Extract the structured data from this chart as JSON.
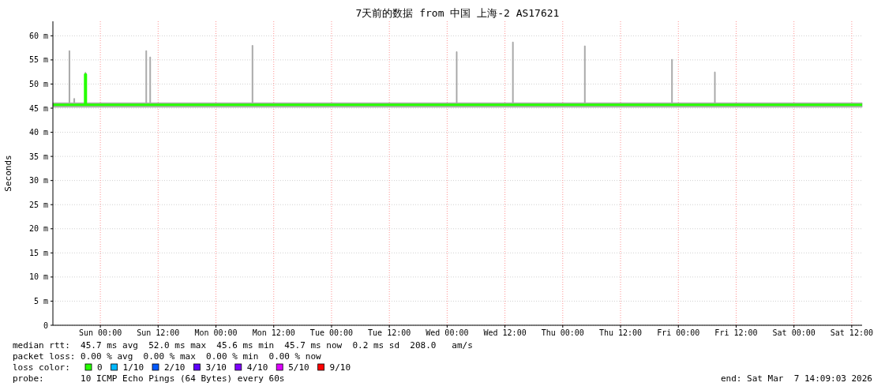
{
  "chart_data": {
    "type": "line",
    "title": "7天前的数据 from 中国 上海-2 AS17621",
    "ylabel": "Seconds",
    "x": [
      "2026-02-28T14:09",
      "2026-02-28T17:20",
      "2026-02-28T17:30",
      "2026-02-28T17:40",
      "2026-02-28T18:20",
      "2026-02-28T18:30",
      "2026-02-28T18:40",
      "2026-02-28T20:40",
      "2026-02-28T20:50",
      "2026-02-28T21:00",
      "2026-03-01T09:17",
      "2026-03-01T09:27",
      "2026-03-01T09:37",
      "2026-03-01T10:06",
      "2026-03-01T10:16",
      "2026-03-01T10:26",
      "2026-03-02T07:20",
      "2026-03-02T07:30",
      "2026-03-02T07:40",
      "2026-03-04T01:44",
      "2026-03-04T01:54",
      "2026-03-04T02:04",
      "2026-03-04T13:24",
      "2026-03-04T13:34",
      "2026-03-04T13:44",
      "2026-03-05T04:20",
      "2026-03-05T04:30",
      "2026-03-05T04:40",
      "2026-03-05T22:26",
      "2026-03-05T22:36",
      "2026-03-05T22:46",
      "2026-03-06T07:20",
      "2026-03-06T07:30",
      "2026-03-06T07:40",
      "2026-03-07T14:09"
    ],
    "series": [
      {
        "name": "0",
        "color": "#26ff00",
        "values": [
          45.7,
          45.7,
          45.7,
          45.7,
          45.7,
          45.7,
          45.7,
          45.7,
          52.0,
          45.7,
          45.7,
          45.7,
          45.7,
          45.7,
          45.7,
          45.7,
          45.7,
          45.7,
          45.7,
          45.7,
          45.7,
          45.7,
          45.7,
          45.7,
          45.7,
          45.7,
          45.7,
          45.7,
          45.7,
          45.7,
          45.7,
          45.7,
          45.7,
          45.7,
          45.7
        ],
        "lower": [
          45.2,
          45.2,
          45.2,
          45.2,
          45.2,
          45.2,
          45.2,
          45.2,
          45.2,
          45.2,
          45.2,
          45.2,
          45.2,
          45.2,
          45.2,
          45.2,
          45.2,
          45.2,
          45.2,
          45.2,
          45.2,
          45.2,
          45.2,
          45.2,
          45.2,
          45.2,
          45.2,
          45.2,
          45.2,
          45.2,
          45.2,
          45.2,
          45.2,
          45.2,
          45.2
        ],
        "upper": [
          46.1,
          46.1,
          56.9,
          46.1,
          46.1,
          47.0,
          46.1,
          46.1,
          52.4,
          46.1,
          46.1,
          56.9,
          46.1,
          46.1,
          55.6,
          46.1,
          46.1,
          58.0,
          46.1,
          46.1,
          56.7,
          46.1,
          46.1,
          58.7,
          46.1,
          46.1,
          57.9,
          46.1,
          46.1,
          55.1,
          46.1,
          46.1,
          52.5,
          46.1,
          46.1
        ]
      },
      {
        "name": "1/10",
        "color": "#00b8ff",
        "values": [
          null,
          null,
          null,
          null,
          null,
          null,
          null,
          null,
          null,
          null,
          null,
          null,
          null,
          null,
          null,
          null,
          null,
          null,
          null,
          null,
          null,
          null,
          null,
          null,
          null,
          null,
          null,
          null,
          null,
          null,
          null,
          null,
          null,
          null,
          null
        ]
      },
      {
        "name": "2/10",
        "color": "#0059ff",
        "values": [
          null,
          null,
          null,
          null,
          null,
          null,
          null,
          null,
          null,
          null,
          null,
          null,
          null,
          null,
          null,
          null,
          null,
          null,
          null,
          null,
          null,
          null,
          null,
          null,
          null,
          null,
          null,
          null,
          null,
          null,
          null,
          null,
          null,
          null,
          null
        ]
      },
      {
        "name": "3/10",
        "color": "#5e00ff",
        "values": [
          null,
          null,
          null,
          null,
          null,
          null,
          null,
          null,
          null,
          null,
          null,
          null,
          null,
          null,
          null,
          null,
          null,
          null,
          null,
          null,
          null,
          null,
          null,
          null,
          null,
          null,
          null,
          null,
          null,
          null,
          null,
          null,
          null,
          null,
          null
        ]
      },
      {
        "name": "4/10",
        "color": "#7e00ff",
        "values": [
          null,
          null,
          null,
          null,
          null,
          null,
          null,
          null,
          null,
          null,
          null,
          null,
          null,
          null,
          null,
          null,
          null,
          null,
          null,
          null,
          null,
          null,
          null,
          null,
          null,
          null,
          null,
          null,
          null,
          null,
          null,
          null,
          null,
          null,
          null
        ]
      },
      {
        "name": "5/10",
        "color": "#dd00ff",
        "values": [
          null,
          null,
          null,
          null,
          null,
          null,
          null,
          null,
          null,
          null,
          null,
          null,
          null,
          null,
          null,
          null,
          null,
          null,
          null,
          null,
          null,
          null,
          null,
          null,
          null,
          null,
          null,
          null,
          null,
          null,
          null,
          null,
          null,
          null,
          null
        ]
      },
      {
        "name": "9/10",
        "color": "#ff0000",
        "values": [
          null,
          null,
          null,
          null,
          null,
          null,
          null,
          null,
          null,
          null,
          null,
          null,
          null,
          null,
          null,
          null,
          null,
          null,
          null,
          null,
          null,
          null,
          null,
          null,
          null,
          null,
          null,
          null,
          null,
          null,
          null,
          null,
          null,
          null,
          null
        ]
      }
    ],
    "legend": "bottom",
    "legend_title": "loss color:",
    "grid": true,
    "xlim": [
      "2026-02-28T14:09",
      "2026-03-07T14:09"
    ],
    "xticks": [
      {
        "value": "2026-03-01T00:00",
        "label": "Sun 00:00"
      },
      {
        "value": "2026-03-01T12:00",
        "label": "Sun 12:00"
      },
      {
        "value": "2026-03-02T00:00",
        "label": "Mon 00:00"
      },
      {
        "value": "2026-03-02T12:00",
        "label": "Mon 12:00"
      },
      {
        "value": "2026-03-03T00:00",
        "label": "Tue 00:00"
      },
      {
        "value": "2026-03-03T12:00",
        "label": "Tue 12:00"
      },
      {
        "value": "2026-03-04T00:00",
        "label": "Wed 00:00"
      },
      {
        "value": "2026-03-04T12:00",
        "label": "Wed 12:00"
      },
      {
        "value": "2026-03-05T00:00",
        "label": "Thu 00:00"
      },
      {
        "value": "2026-03-05T12:00",
        "label": "Thu 12:00"
      },
      {
        "value": "2026-03-06T00:00",
        "label": "Fri 00:00"
      },
      {
        "value": "2026-03-06T12:00",
        "label": "Fri 12:00"
      },
      {
        "value": "2026-03-07T00:00",
        "label": "Sat 00:00"
      },
      {
        "value": "2026-03-07T12:00",
        "label": "Sat 12:00"
      }
    ],
    "ylim": [
      0,
      63
    ],
    "yticks": [
      0,
      {
        "value": 5,
        "label": "5 m"
      },
      {
        "value": 10,
        "label": "10 m"
      },
      {
        "value": 15,
        "label": "15 m"
      },
      {
        "value": 20,
        "label": "20 m"
      },
      {
        "value": 25,
        "label": "25 m"
      },
      {
        "value": 30,
        "label": "30 m"
      },
      {
        "value": 35,
        "label": "35 m"
      },
      {
        "value": 40,
        "label": "40 m"
      },
      {
        "value": 45,
        "label": "45 m"
      },
      {
        "value": 50,
        "label": "50 m"
      },
      {
        "value": 55,
        "label": "55 m"
      },
      {
        "value": 60,
        "label": "60 m"
      }
    ],
    "annotations": [
      "median rtt:  45.7 ms avg  52.0 ms max  45.6 ms min  45.7 ms now  0.2 ms sd  208.0   am/s",
      "packet loss: 0.00 % avg  0.00 % max  0.00 % min  0.00 % now",
      "probe:       10 ICMP Echo Pings (64 Bytes) every 60s",
      "end: Sat Mar  7 14:09:03 2026"
    ]
  }
}
